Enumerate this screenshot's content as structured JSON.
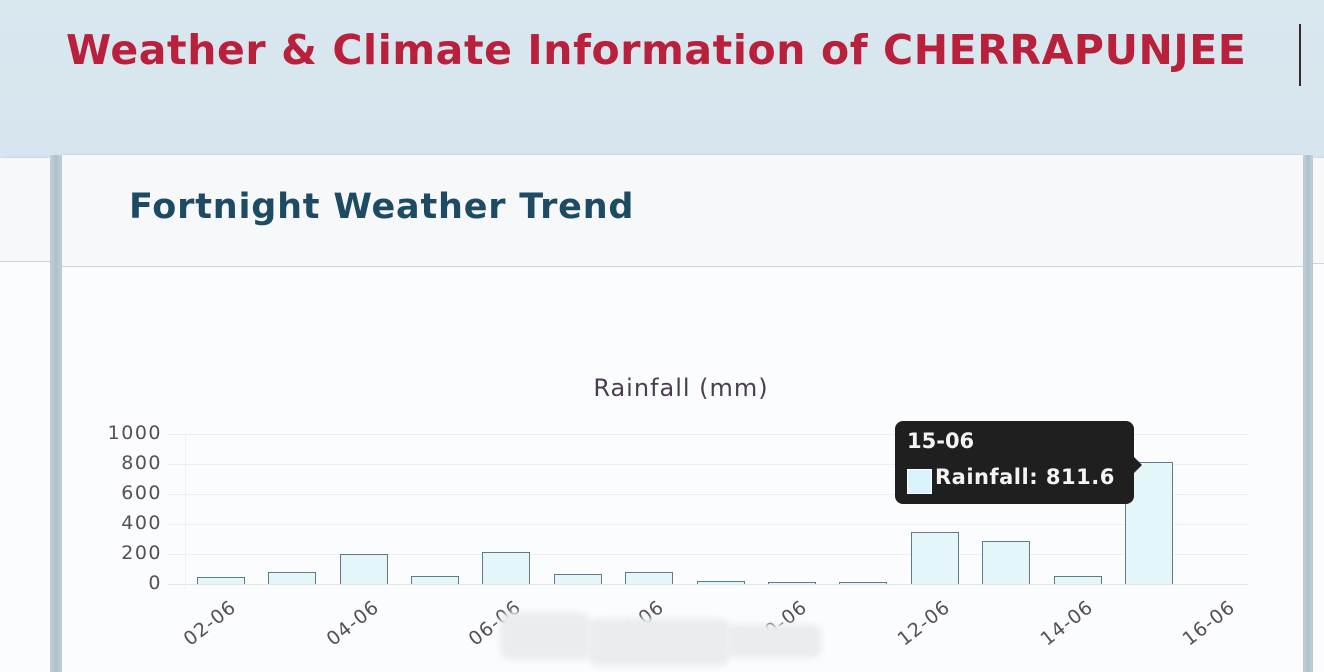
{
  "page": {
    "title": "Weather & Climate Information of CHERRAPUNJEE"
  },
  "card": {
    "title": "Fortnight Weather Trend"
  },
  "chart_data": {
    "type": "bar",
    "title": "Rainfall (mm)",
    "xlabel": "",
    "ylabel": "",
    "ylim": [
      0,
      1000
    ],
    "yticks": [
      "1000",
      "800",
      "600",
      "400",
      "200",
      "0"
    ],
    "grid": true,
    "legend": "none",
    "categories": [
      "02-06",
      "03-06",
      "04-06",
      "05-06",
      "06-06",
      "07-06",
      "08-06",
      "09-06",
      "10-06",
      "11-06",
      "12-06",
      "13-06",
      "14-06",
      "15-06",
      "16-06"
    ],
    "x_tick_labels_visible": [
      "02-06",
      "04-06",
      "06-06",
      "08-06",
      "10-06",
      "12-06",
      "14-06",
      "16-06"
    ],
    "series": [
      {
        "name": "Rainfall",
        "color": "#e5f6fb",
        "border_color": "#5f7b86",
        "values": [
          47,
          80,
          200,
          53,
          213,
          67,
          80,
          20,
          13,
          13,
          347,
          287,
          53,
          811.6,
          null
        ]
      }
    ],
    "tooltip": {
      "title": "15-06",
      "label": "Rainfall: 811.6",
      "series": "Rainfall",
      "value": 811.6
    }
  },
  "colors": {
    "page_title": "#b8203c",
    "card_title": "#1d4b64",
    "bar_fill": "#e5f6fb",
    "bar_border": "#5f7b86",
    "tooltip_bg": "#1f1f1f"
  }
}
